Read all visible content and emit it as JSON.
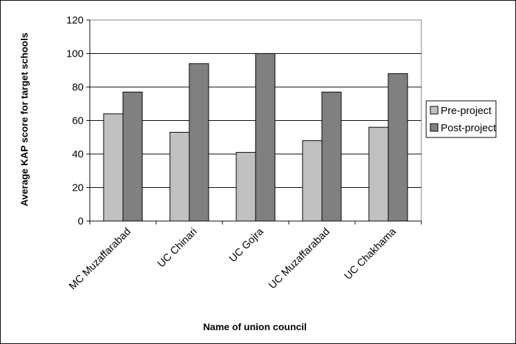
{
  "chart_data": {
    "type": "bar",
    "title": "",
    "xlabel": "Name of union council",
    "ylabel": "Average KAP score for target schools",
    "categories": [
      "MC Muzaffarabad",
      "UC Chinari",
      "UC Gojra",
      "UC Muzaffarabad",
      "UC Chakhama"
    ],
    "series": [
      {
        "name": "Pre-project",
        "values": [
          64,
          53,
          41,
          48,
          56
        ],
        "color": "#c0c0c0"
      },
      {
        "name": "Post-project",
        "values": [
          77,
          94,
          100,
          77,
          88
        ],
        "color": "#808080"
      }
    ],
    "ylim": [
      0,
      120
    ],
    "yticks": [
      0,
      20,
      40,
      60,
      80,
      100,
      120
    ],
    "grid": true,
    "legend": "right"
  }
}
